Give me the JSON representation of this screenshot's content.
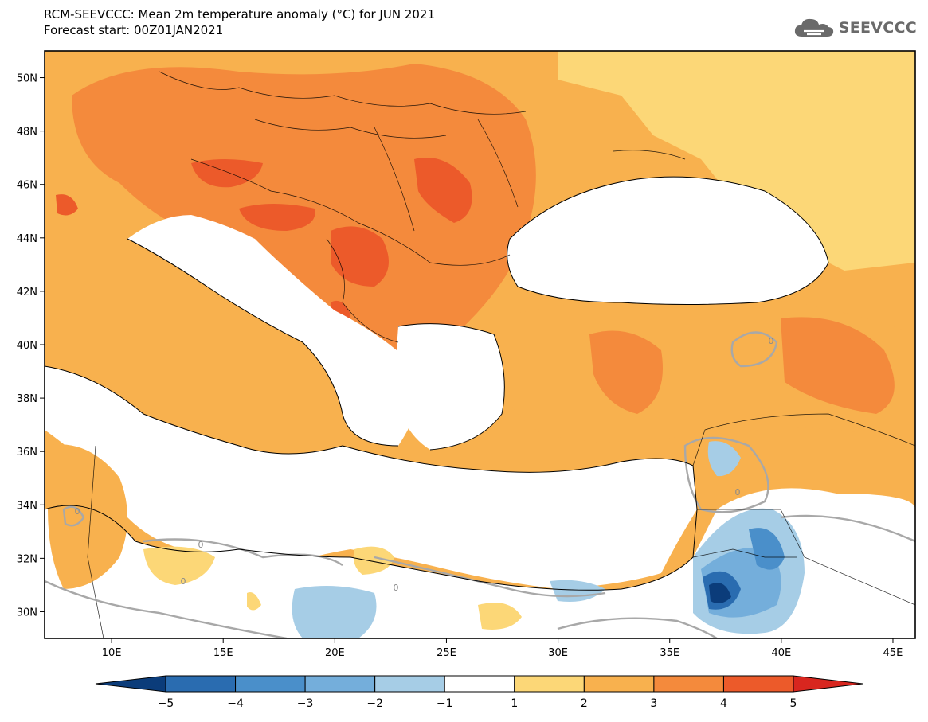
{
  "header": {
    "title": "RCM-SEEVCCC: Mean 2m temperature anomaly (°C) for JUN 2021",
    "subtitle": "Forecast start: 00Z01JAN2021"
  },
  "logo": {
    "text": "SEEVCCC",
    "icon": "cloud-icon"
  },
  "map": {
    "variable": "Mean 2m temperature anomaly",
    "unit": "°C",
    "lon_range": [
      7,
      46
    ],
    "lat_range": [
      29,
      51
    ],
    "lon_ticks": [
      "10E",
      "15E",
      "20E",
      "25E",
      "30E",
      "35E",
      "40E",
      "45E"
    ],
    "lat_ticks": [
      "50N",
      "48N",
      "46N",
      "44N",
      "42N",
      "40N",
      "38N",
      "36N",
      "34N",
      "32N",
      "30N"
    ],
    "contour_labels": [
      "0",
      "0",
      "0",
      "0",
      "0",
      "0"
    ]
  },
  "colorbar": {
    "labels": [
      "−5",
      "−4",
      "−3",
      "−2",
      "−1",
      "1",
      "2",
      "3",
      "4",
      "5"
    ],
    "colors": [
      "#0b3c7a",
      "#2a6cb0",
      "#4a8fca",
      "#74aedb",
      "#a6cde6",
      "#ffffff",
      "#fcd777",
      "#f8b14e",
      "#f48a3c",
      "#ec5a2a",
      "#d8261f"
    ]
  }
}
